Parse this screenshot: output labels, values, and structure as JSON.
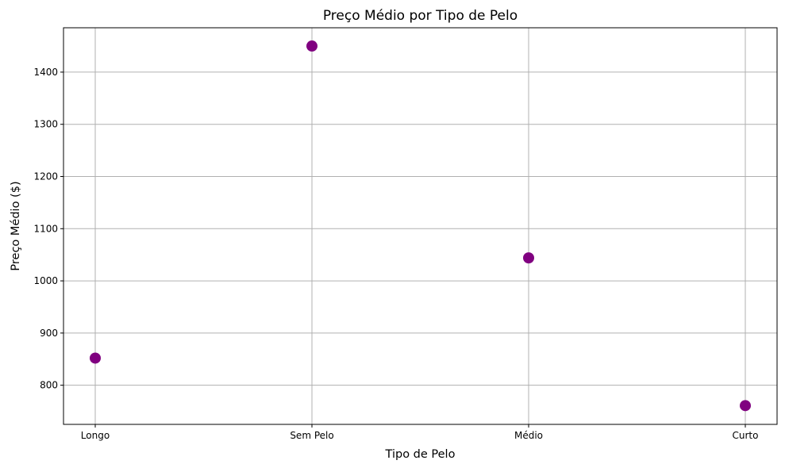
{
  "chart_data": {
    "type": "scatter",
    "title": "Preço Médio por Tipo de Pelo",
    "xlabel": "Tipo de Pelo",
    "ylabel": "Preço Médio ($)",
    "categories": [
      "Longo",
      "Sem Pelo",
      "Médio",
      "Curto"
    ],
    "series": [
      {
        "values": [
          852,
          1450,
          1044,
          761
        ],
        "color": "#800080"
      }
    ],
    "ylim": [
      725,
      1485
    ],
    "yticks": [
      800,
      900,
      1000,
      1100,
      1200,
      1300,
      1400
    ],
    "grid": true,
    "legend": "none"
  }
}
